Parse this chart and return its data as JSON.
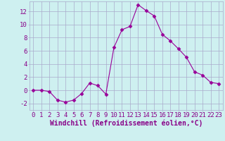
{
  "x": [
    0,
    1,
    2,
    3,
    4,
    5,
    6,
    7,
    8,
    9,
    10,
    11,
    12,
    13,
    14,
    15,
    16,
    17,
    18,
    19,
    20,
    21,
    22,
    23
  ],
  "y": [
    0,
    0,
    -0.2,
    -1.5,
    -1.8,
    -1.5,
    -0.5,
    1.1,
    0.7,
    -0.6,
    6.5,
    9.2,
    9.7,
    13.0,
    12.1,
    11.3,
    8.5,
    7.5,
    6.3,
    5.0,
    2.8,
    2.3,
    1.2,
    1.0
  ],
  "line_color": "#990099",
  "marker": "D",
  "marker_size": 2.5,
  "bg_color": "#cef0f0",
  "grid_color": "#aaaacc",
  "xlabel": "Windchill (Refroidissement éolien,°C)",
  "xlim": [
    -0.5,
    23.5
  ],
  "ylim": [
    -3,
    13.5
  ],
  "xticks": [
    0,
    1,
    2,
    3,
    4,
    5,
    6,
    7,
    8,
    9,
    10,
    11,
    12,
    13,
    14,
    15,
    16,
    17,
    18,
    19,
    20,
    21,
    22,
    23
  ],
  "yticks": [
    -2,
    0,
    2,
    4,
    6,
    8,
    10,
    12
  ],
  "tick_color": "#880088",
  "label_color": "#880088",
  "font_size": 6.5,
  "xlabel_font_size": 7.0
}
